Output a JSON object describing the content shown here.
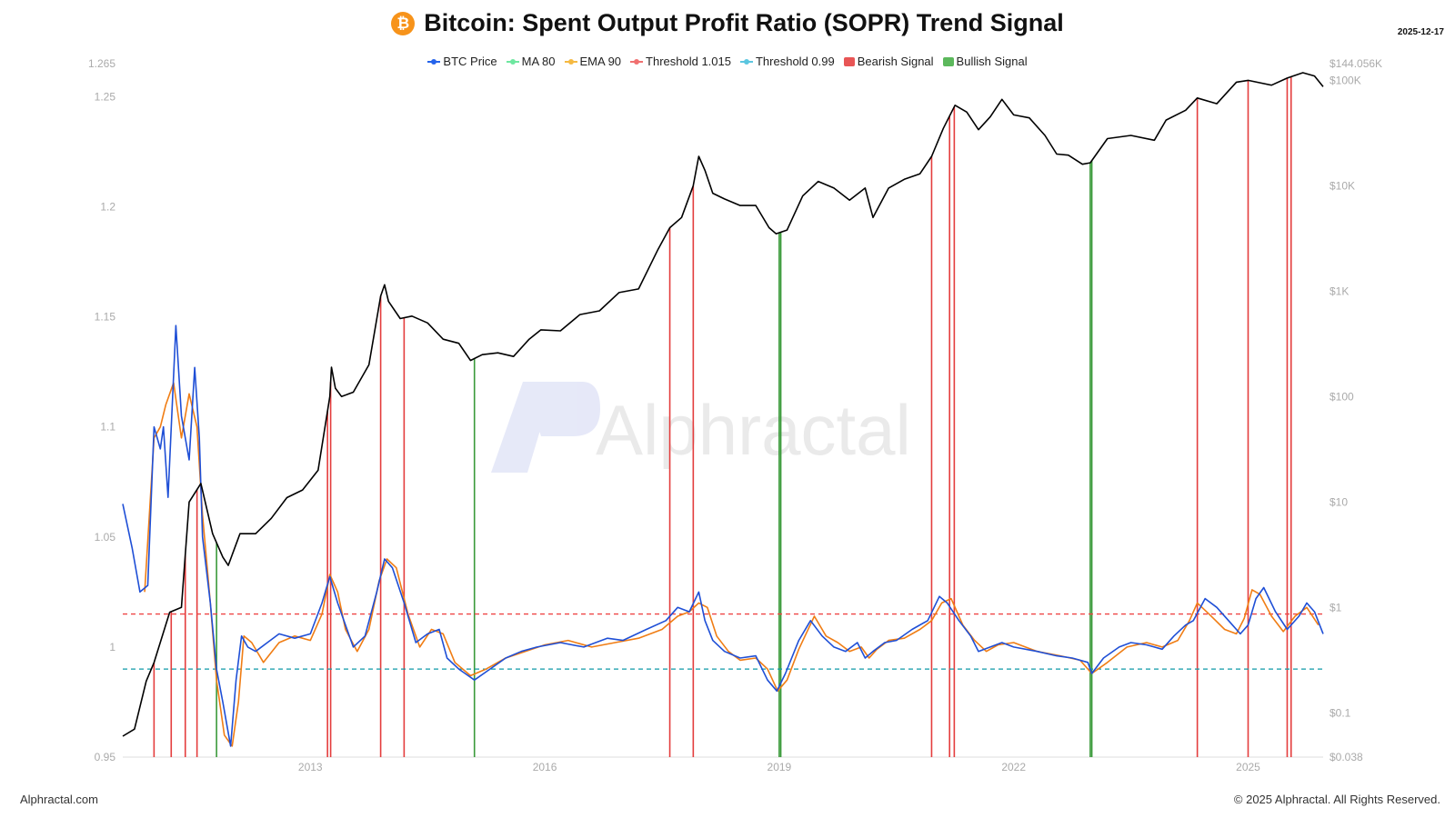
{
  "header": {
    "logo_glyph": "₿",
    "title": "Bitcoin: Spent Output Profit Ratio (SOPR) Trend Signal",
    "date": "2025-12-17"
  },
  "watermark": "Alphractal",
  "footer": {
    "left": "Alphractal.com",
    "right": "© 2025 Alphractal. All Rights Reserved."
  },
  "colors": {
    "btc_price": "#000000",
    "ma80": "#1f4fd6",
    "ema90": "#f07d14",
    "threshold_high": "#ef4444",
    "threshold_low": "#0e9aa7",
    "bearish": "#e43d3d",
    "bullish": "#3a9a3a",
    "axis_text": "#aaaaaa"
  },
  "legend": [
    {
      "label": "BTC Price",
      "color": "#2563eb",
      "kind": "line"
    },
    {
      "label": "MA 80",
      "color": "#6ee7a0",
      "kind": "line"
    },
    {
      "label": "EMA 90",
      "color": "#f5b942",
      "kind": "line"
    },
    {
      "label": "Threshold 1.015",
      "color": "#f07070",
      "kind": "line"
    },
    {
      "label": "Threshold 0.99",
      "color": "#5bc6e0",
      "kind": "line"
    },
    {
      "label": "Bearish Signal",
      "color": "#e85555",
      "kind": "box"
    },
    {
      "label": "Bullish Signal",
      "color": "#5cb85c",
      "kind": "box"
    }
  ],
  "chart_data": {
    "type": "line",
    "title": "Bitcoin: Spent Output Profit Ratio (SOPR) Trend Signal",
    "x_range": [
      2010.6,
      2025.96
    ],
    "x_ticks": [
      2013,
      2016,
      2019,
      2022,
      2025
    ],
    "y_left": {
      "range": [
        0.95,
        1.265
      ],
      "ticks": [
        0.95,
        1,
        1.05,
        1.1,
        1.15,
        1.2,
        1.25,
        1.265
      ]
    },
    "y_right": {
      "scale": "log",
      "range": [
        0.038,
        144056
      ],
      "ticks": [
        {
          "value": 0.038,
          "label": "$0.038"
        },
        {
          "value": 0.1,
          "label": "$0.1"
        },
        {
          "value": 1,
          "label": "$1"
        },
        {
          "value": 10,
          "label": "$10"
        },
        {
          "value": 100,
          "label": "$100"
        },
        {
          "value": 1000,
          "label": "$1K"
        },
        {
          "value": 10000,
          "label": "$10K"
        },
        {
          "value": 100000,
          "label": "$100K"
        },
        {
          "value": 144056,
          "label": "$144.056K"
        }
      ]
    },
    "thresholds": [
      {
        "name": "Threshold 1.015",
        "value": 1.015
      },
      {
        "name": "Threshold 0.99",
        "value": 0.99
      }
    ],
    "series": [
      {
        "name": "BTC Price",
        "axis": "right",
        "x": [
          2010.6,
          2010.75,
          2010.9,
          2011.0,
          2011.2,
          2011.35,
          2011.45,
          2011.6,
          2011.75,
          2011.88,
          2011.95,
          2012.1,
          2012.3,
          2012.5,
          2012.7,
          2012.9,
          2013.1,
          2013.25,
          2013.27,
          2013.32,
          2013.4,
          2013.55,
          2013.75,
          2013.9,
          2013.95,
          2014.0,
          2014.15,
          2014.3,
          2014.5,
          2014.7,
          2014.9,
          2015.05,
          2015.2,
          2015.4,
          2015.6,
          2015.8,
          2015.95,
          2016.2,
          2016.45,
          2016.7,
          2016.95,
          2017.2,
          2017.45,
          2017.6,
          2017.75,
          2017.9,
          2017.97,
          2018.05,
          2018.15,
          2018.3,
          2018.5,
          2018.7,
          2018.87,
          2018.96,
          2019.1,
          2019.3,
          2019.5,
          2019.7,
          2019.9,
          2020.1,
          2020.2,
          2020.4,
          2020.6,
          2020.8,
          2020.95,
          2021.1,
          2021.25,
          2021.4,
          2021.55,
          2021.7,
          2021.85,
          2022.0,
          2022.2,
          2022.4,
          2022.55,
          2022.7,
          2022.88,
          2022.98,
          2023.2,
          2023.5,
          2023.8,
          2023.95,
          2024.2,
          2024.35,
          2024.6,
          2024.85,
          2025.0,
          2025.3,
          2025.5,
          2025.7,
          2025.85,
          2025.96
        ],
        "values": [
          0.06,
          0.07,
          0.2,
          0.3,
          0.9,
          1.0,
          10,
          15,
          5,
          3,
          2.5,
          5,
          5,
          7,
          11,
          13,
          20,
          100,
          190,
          120,
          100,
          110,
          200,
          900,
          1150,
          800,
          550,
          580,
          500,
          350,
          320,
          220,
          250,
          260,
          240,
          350,
          430,
          420,
          600,
          650,
          970,
          1050,
          2500,
          4000,
          5000,
          10000,
          19000,
          14000,
          8500,
          7500,
          6500,
          6500,
          4000,
          3500,
          3800,
          8000,
          11000,
          9500,
          7300,
          9500,
          5000,
          9500,
          11500,
          13000,
          19000,
          35000,
          58000,
          50000,
          34000,
          45000,
          66000,
          47000,
          44000,
          30000,
          20000,
          19500,
          16000,
          16500,
          28000,
          30000,
          27000,
          42000,
          52000,
          68000,
          60000,
          96000,
          100000,
          90000,
          105000,
          118000,
          110000,
          87000
        ]
      },
      {
        "name": "MA 80",
        "axis": "left",
        "x": [
          2010.6,
          2010.72,
          2010.82,
          2010.92,
          2011.0,
          2011.08,
          2011.12,
          2011.18,
          2011.28,
          2011.35,
          2011.45,
          2011.52,
          2011.58,
          2011.62,
          2011.72,
          2011.8,
          2011.88,
          2011.98,
          2012.05,
          2012.12,
          2012.2,
          2012.3,
          2012.45,
          2012.6,
          2012.8,
          2013.0,
          2013.15,
          2013.25,
          2013.35,
          2013.45,
          2013.55,
          2013.7,
          2013.85,
          2013.95,
          2014.05,
          2014.2,
          2014.35,
          2014.5,
          2014.65,
          2014.75,
          2014.9,
          2015.1,
          2015.3,
          2015.5,
          2015.7,
          2015.9,
          2016.2,
          2016.5,
          2016.8,
          2017.0,
          2017.3,
          2017.55,
          2017.7,
          2017.85,
          2017.97,
          2018.05,
          2018.15,
          2018.3,
          2018.5,
          2018.7,
          2018.85,
          2018.97,
          2019.08,
          2019.25,
          2019.4,
          2019.55,
          2019.7,
          2019.85,
          2020.0,
          2020.1,
          2020.2,
          2020.35,
          2020.5,
          2020.7,
          2020.9,
          2021.05,
          2021.15,
          2021.3,
          2021.45,
          2021.55,
          2021.7,
          2021.85,
          2022.0,
          2022.3,
          2022.55,
          2022.75,
          2022.95,
          2023.0,
          2023.15,
          2023.35,
          2023.5,
          2023.7,
          2023.9,
          2024.05,
          2024.2,
          2024.3,
          2024.45,
          2024.6,
          2024.8,
          2024.9,
          2025.0,
          2025.1,
          2025.2,
          2025.35,
          2025.5,
          2025.65,
          2025.75,
          2025.85,
          2025.96
        ],
        "values": [
          1.065,
          1.045,
          1.025,
          1.028,
          1.1,
          1.09,
          1.1,
          1.068,
          1.146,
          1.105,
          1.085,
          1.127,
          1.095,
          1.05,
          1.02,
          0.99,
          0.975,
          0.955,
          0.985,
          1.005,
          1.0,
          0.998,
          1.002,
          1.006,
          1.004,
          1.006,
          1.02,
          1.032,
          1.02,
          1.01,
          1.0,
          1.005,
          1.025,
          1.04,
          1.036,
          1.02,
          1.002,
          1.006,
          1.008,
          0.995,
          0.99,
          0.985,
          0.99,
          0.995,
          0.998,
          1.0,
          1.002,
          1.0,
          1.004,
          1.003,
          1.008,
          1.012,
          1.018,
          1.016,
          1.025,
          1.012,
          1.003,
          0.998,
          0.995,
          0.996,
          0.985,
          0.98,
          0.988,
          1.003,
          1.012,
          1.005,
          1.0,
          0.998,
          1.002,
          0.995,
          0.998,
          1.002,
          1.003,
          1.008,
          1.012,
          1.023,
          1.02,
          1.012,
          1.005,
          0.998,
          1.0,
          1.002,
          1.0,
          0.998,
          0.996,
          0.995,
          0.993,
          0.988,
          0.995,
          1.0,
          1.002,
          1.001,
          0.999,
          1.005,
          1.01,
          1.012,
          1.022,
          1.018,
          1.01,
          1.006,
          1.01,
          1.022,
          1.027,
          1.016,
          1.008,
          1.014,
          1.02,
          1.016,
          1.006
        ]
      },
      {
        "name": "EMA 90",
        "axis": "left",
        "x": [
          2010.88,
          2011.0,
          2011.08,
          2011.15,
          2011.25,
          2011.35,
          2011.45,
          2011.55,
          2011.62,
          2011.72,
          2011.8,
          2011.9,
          2012.0,
          2012.08,
          2012.15,
          2012.25,
          2012.4,
          2012.6,
          2012.8,
          2013.0,
          2013.15,
          2013.25,
          2013.35,
          2013.45,
          2013.6,
          2013.75,
          2013.88,
          2013.98,
          2014.1,
          2014.25,
          2014.4,
          2014.55,
          2014.7,
          2014.85,
          2015.05,
          2015.25,
          2015.5,
          2015.75,
          2016.0,
          2016.3,
          2016.6,
          2016.9,
          2017.2,
          2017.5,
          2017.7,
          2017.85,
          2017.97,
          2018.08,
          2018.2,
          2018.35,
          2018.5,
          2018.7,
          2018.85,
          2018.98,
          2019.1,
          2019.25,
          2019.45,
          2019.6,
          2019.75,
          2019.9,
          2020.05,
          2020.15,
          2020.25,
          2020.4,
          2020.6,
          2020.8,
          2020.95,
          2021.08,
          2021.2,
          2021.35,
          2021.5,
          2021.65,
          2021.8,
          2022.0,
          2022.3,
          2022.6,
          2022.85,
          2023.0,
          2023.2,
          2023.45,
          2023.7,
          2023.9,
          2024.1,
          2024.25,
          2024.35,
          2024.5,
          2024.7,
          2024.85,
          2024.95,
          2025.05,
          2025.15,
          2025.3,
          2025.45,
          2025.6,
          2025.75,
          2025.9
        ],
        "values": [
          1.025,
          1.095,
          1.1,
          1.11,
          1.12,
          1.095,
          1.115,
          1.1,
          1.06,
          1.02,
          0.985,
          0.96,
          0.955,
          0.975,
          1.005,
          1.002,
          0.993,
          1.002,
          1.005,
          1.003,
          1.015,
          1.033,
          1.025,
          1.008,
          0.998,
          1.008,
          1.03,
          1.04,
          1.036,
          1.015,
          1.0,
          1.008,
          1.006,
          0.993,
          0.987,
          0.99,
          0.995,
          0.998,
          1.001,
          1.003,
          1.0,
          1.002,
          1.004,
          1.008,
          1.014,
          1.016,
          1.02,
          1.018,
          1.005,
          0.998,
          0.994,
          0.995,
          0.99,
          0.98,
          0.985,
          0.999,
          1.014,
          1.005,
          1.002,
          0.998,
          1.0,
          0.995,
          0.999,
          1.003,
          1.004,
          1.008,
          1.012,
          1.02,
          1.022,
          1.01,
          1.003,
          0.998,
          1.001,
          1.002,
          0.998,
          0.996,
          0.994,
          0.988,
          0.993,
          1.0,
          1.002,
          1.0,
          1.003,
          1.012,
          1.02,
          1.015,
          1.008,
          1.006,
          1.013,
          1.026,
          1.024,
          1.014,
          1.007,
          1.014,
          1.018,
          1.01
        ]
      }
    ],
    "signals": {
      "bearish": [
        2011.0,
        2011.22,
        2011.4,
        2011.55,
        2013.22,
        2013.26,
        2013.9,
        2014.2,
        2017.6,
        2017.9,
        2020.95,
        2021.18,
        2021.24,
        2024.35,
        2025.0,
        2025.5,
        2025.55
      ],
      "bullish": [
        2011.8,
        2015.1,
        2019.0,
        2019.02,
        2022.98,
        2023.0
      ]
    },
    "watermark": "Alphractal"
  }
}
